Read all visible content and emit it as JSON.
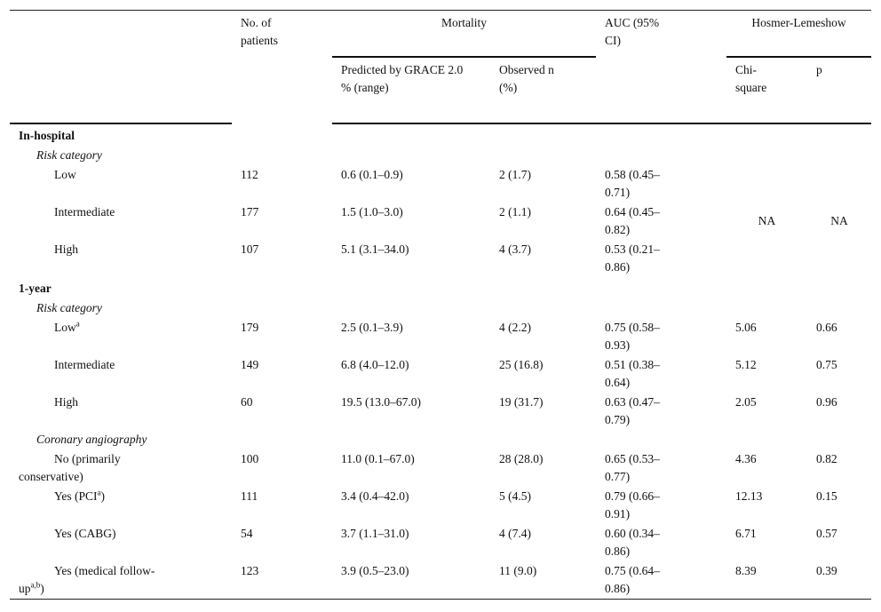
{
  "header": {
    "patients": "No. of patients",
    "mortality": "Mortality",
    "auc": "AUC (95% CI)",
    "hl": "Hosmer-Lemeshow",
    "predicted_l1": "Predicted by GRACE 2.0",
    "predicted_l2": "% (range)",
    "observed": "Observed n (%)",
    "chi": "Chi-square",
    "p": "p"
  },
  "inhospital": {
    "title": "In-hospital",
    "subtitle": "Risk category",
    "na1": "NA",
    "na2": "NA",
    "rows": [
      {
        "label": "Low",
        "n": "112",
        "pred": "0.6 (0.1–0.9)",
        "obs": "2 (1.7)",
        "auc": "0.58 (0.45–0.71)"
      },
      {
        "label": "Intermediate",
        "n": "177",
        "pred": "1.5 (1.0–3.0)",
        "obs": "2 (1.1)",
        "auc": "0.64 (0.45–0.82)"
      },
      {
        "label": "High",
        "n": "107",
        "pred": "5.1 (3.1–34.0)",
        "obs": "4 (3.7)",
        "auc": "0.53 (0.21–0.86)"
      }
    ]
  },
  "oneyear": {
    "title": "1-year",
    "subtitle": "Risk category",
    "rows": [
      {
        "label": "Low",
        "sup": "a",
        "n": "179",
        "pred": "2.5 (0.1–3.9)",
        "obs": "4 (2.2)",
        "auc": "0.75 (0.58–0.93)",
        "chi": "5.06",
        "p": "0.66"
      },
      {
        "label": "Intermediate",
        "n": "149",
        "pred": "6.8 (4.0–12.0)",
        "obs": "25 (16.8)",
        "auc": "0.51 (0.38–0.64)",
        "chi": "5.12",
        "p": "0.75"
      },
      {
        "label": "High",
        "n": "60",
        "pred": "19.5 (13.0–67.0)",
        "obs": "19 (31.7)",
        "auc": "0.63 (0.47–0.79)",
        "chi": "2.05",
        "p": "0.96"
      }
    ],
    "subtitle2": "Coronary angiography",
    "rows2": [
      {
        "label": "No (primarily conservative)",
        "n": "100",
        "pred": "11.0 (0.1–67.0)",
        "obs": "28 (28.0)",
        "auc": "0.65 (0.53–0.77)",
        "chi": "4.36",
        "p": "0.82"
      },
      {
        "label": "Yes (PCI",
        "sup": "a",
        "after": ")",
        "n": "111",
        "pred": "3.4 (0.4–42.0)",
        "obs": "5 (4.5)",
        "auc": "0.79 (0.66–0.91)",
        "chi": "12.13",
        "p": "0.15"
      },
      {
        "label": "Yes (CABG)",
        "n": "54",
        "pred": "3.7 (1.1–31.0)",
        "obs": "4 (7.4)",
        "auc": "0.60 (0.34–0.86)",
        "chi": "6.71",
        "p": "0.57"
      },
      {
        "label": "Yes (medical follow-up",
        "sup": "a,b",
        "after": ")",
        "n": "123",
        "pred": "3.9 (0.5–23.0)",
        "obs": "11 (9.0)",
        "auc": "0.75 (0.64–0.86)",
        "chi": "8.39",
        "p": "0.39"
      }
    ]
  }
}
